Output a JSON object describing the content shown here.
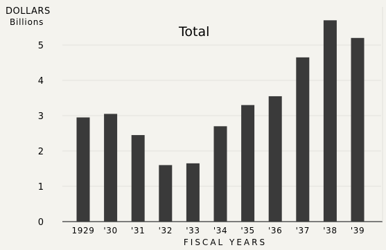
{
  "chart_data": {
    "type": "bar",
    "title": "Total",
    "yunit": "DOLLARS",
    "ylabel": "Billions",
    "xlabel": "FISCAL YEARS",
    "categories": [
      "1929",
      "'30",
      "'31",
      "'32",
      "'33",
      "'34",
      "'35",
      "'36",
      "'37",
      "'38",
      "'39"
    ],
    "values": [
      2.95,
      3.05,
      2.45,
      1.6,
      1.65,
      2.7,
      3.3,
      3.55,
      4.65,
      5.7,
      5.2
    ],
    "ylim": [
      0,
      6
    ],
    "yticks": [
      "0",
      "1",
      "2",
      "3",
      "4",
      "5"
    ],
    "grid": true,
    "colors": {
      "bar": "#3a3a3a",
      "background": "#f4f3ee",
      "grid": "#e2e1dc",
      "axis": "#555555"
    }
  }
}
